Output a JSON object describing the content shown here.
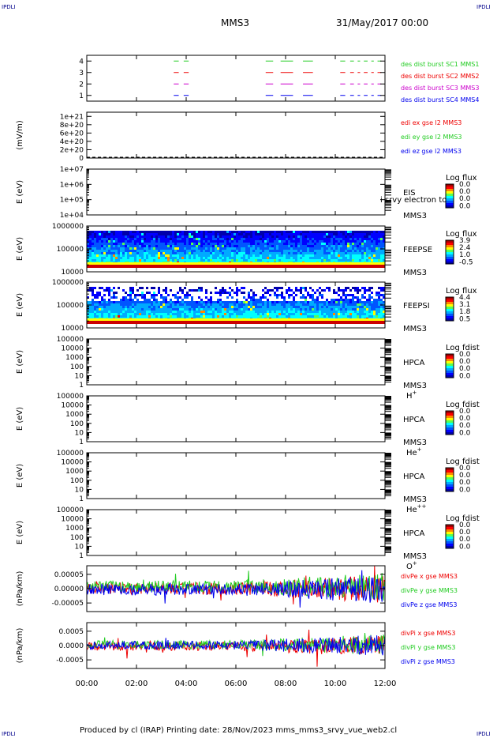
{
  "corner_labels": {
    "tl": "IPDLI",
    "tr": "IPDLI",
    "bl": "IPDLI",
    "br": "IPDLI"
  },
  "header": {
    "spacecraft": "MMS3",
    "date": "31/May/2017 00:00"
  },
  "footer": {
    "text": "Produced by cl (IRAP)   Printing date: 28/Nov/2023   mms_mms3_srvy_vue_web2.cl"
  },
  "chart_data": {
    "type": "line",
    "x_tick_labels": [
      "00:00",
      "02:00",
      "04:00",
      "06:00",
      "08:00",
      "10:00",
      "12:00"
    ],
    "xlim_hours": [
      0,
      12
    ],
    "panels": [
      {
        "id": "burst",
        "type": "timeline",
        "ylim": [
          0.5,
          4.5
        ],
        "y_ticks": [
          {
            "v": 4,
            "t": "4"
          },
          {
            "v": 3,
            "t": "3"
          },
          {
            "v": 2,
            "t": "2"
          },
          {
            "v": 1,
            "t": "1"
          }
        ],
        "series": [
          {
            "name": "des dist burst SC1 MMS1",
            "level": 4,
            "color": "#22cc22"
          },
          {
            "name": "des dist burst SC2 MMS2",
            "level": 3,
            "color": "#ee0000"
          },
          {
            "name": "des dist burst SC3 MMS3",
            "level": 2,
            "color": "#cc00cc"
          },
          {
            "name": "des dist burst SC4 MMS4",
            "level": 1,
            "color": "#0000ee"
          }
        ],
        "intervals_hours": [
          [
            3.5,
            3.7
          ],
          [
            3.9,
            4.1
          ],
          [
            7.2,
            7.5
          ],
          [
            7.8,
            8.3
          ],
          [
            8.7,
            9.1
          ],
          [
            10.2,
            10.4
          ],
          [
            10.6,
            10.75
          ],
          [
            10.9,
            11.0
          ],
          [
            11.15,
            11.3
          ],
          [
            11.45,
            11.55
          ],
          [
            11.7,
            11.85
          ]
        ]
      },
      {
        "id": "edi",
        "type": "line",
        "ylabel": "(mV/m)",
        "ylim": [
          0,
          1.1e+21
        ],
        "y_ticks": [
          {
            "v": 1e+21,
            "t": "1e+21"
          },
          {
            "v": 8e+20,
            "t": "8e+20"
          },
          {
            "v": 6e+20,
            "t": "6e+20"
          },
          {
            "v": 4e+20,
            "t": "4e+20"
          },
          {
            "v": 2e+20,
            "t": "2e+20"
          },
          {
            "v": 0,
            "t": "0"
          }
        ],
        "series": [
          {
            "name": "edi ex gse l2 MMS3",
            "color": "#ee0000"
          },
          {
            "name": "edi ey gse l2 MMS3",
            "color": "#22cc22"
          },
          {
            "name": "edi ez gse l2 MMS3",
            "color": "#0000ee"
          }
        ]
      },
      {
        "id": "eis",
        "type": "spectrogram",
        "ylabel": "E (eV)",
        "log": true,
        "ylim": [
          10000.0,
          10000000.0
        ],
        "y_ticks": [
          {
            "v": 10000000.0,
            "t": "1e+07"
          },
          {
            "v": 1000000.0,
            "t": "1e+06"
          },
          {
            "v": 100000.0,
            "t": "1e+05"
          },
          {
            "v": 10000.0,
            "t": "1e+04"
          }
        ],
        "instrument": [
          "EIS",
          "MMS3"
        ],
        "overlay": "i srvy electron to",
        "colorbar": {
          "title": "Log flux",
          "ticks": [
            "0.0",
            "0.0",
            "0.0",
            "0.0"
          ]
        },
        "filled": false
      },
      {
        "id": "feepse",
        "type": "spectrogram",
        "ylabel": "E (eV)",
        "log": true,
        "ylim": [
          10000.0,
          1000000.0
        ],
        "y_ticks": [
          {
            "v": 1000000.0,
            "t": "1000000"
          },
          {
            "v": 100000.0,
            "t": "100000"
          },
          {
            "v": 10000.0,
            "t": "10000"
          }
        ],
        "instrument": [
          "FEEPSE",
          "MMS3"
        ],
        "colorbar": {
          "title": "Log flux",
          "ticks": [
            "3.9",
            "2.4",
            "1.0",
            "-0.5"
          ]
        },
        "filled": true
      },
      {
        "id": "feepsi",
        "type": "spectrogram",
        "ylabel": "E (eV)",
        "log": true,
        "ylim": [
          10000.0,
          1000000.0
        ],
        "y_ticks": [
          {
            "v": 1000000.0,
            "t": "1000000"
          },
          {
            "v": 100000.0,
            "t": "100000"
          },
          {
            "v": 10000.0,
            "t": "10000"
          }
        ],
        "instrument": [
          "FEEPSI",
          "MMS3"
        ],
        "colorbar": {
          "title": "Log flux",
          "ticks": [
            "4.4",
            "3.1",
            "1.8",
            "0.5"
          ]
        },
        "filled": true
      },
      {
        "id": "hpca_h",
        "type": "spectrogram",
        "ylabel": "E (eV)",
        "log": true,
        "ylim": [
          1,
          100000.0
        ],
        "y_ticks": [
          {
            "v": 100000.0,
            "t": "100000"
          },
          {
            "v": 10000.0,
            "t": "10000"
          },
          {
            "v": 1000.0,
            "t": "1000"
          },
          {
            "v": 100,
            "t": "100"
          },
          {
            "v": 10,
            "t": "10"
          },
          {
            "v": 1,
            "t": "1"
          }
        ],
        "instrument": [
          "HPCA",
          "MMS3"
        ],
        "species": "H",
        "charge": "+",
        "colorbar": {
          "title": "Log fdist",
          "ticks": [
            "0.0",
            "0.0",
            "0.0",
            "0.0"
          ]
        },
        "filled": false
      },
      {
        "id": "hpca_he",
        "type": "spectrogram",
        "ylabel": "E (eV)",
        "log": true,
        "ylim": [
          1,
          100000.0
        ],
        "y_ticks": [
          {
            "v": 100000.0,
            "t": "100000"
          },
          {
            "v": 10000.0,
            "t": "10000"
          },
          {
            "v": 1000.0,
            "t": "1000"
          },
          {
            "v": 100,
            "t": "100"
          },
          {
            "v": 10,
            "t": "10"
          },
          {
            "v": 1,
            "t": "1"
          }
        ],
        "instrument": [
          "HPCA",
          "MMS3"
        ],
        "species": "He",
        "charge": "+",
        "colorbar": {
          "title": "Log fdist",
          "ticks": [
            "0.0",
            "0.0",
            "0.0",
            "0.0"
          ]
        },
        "filled": false
      },
      {
        "id": "hpca_he2",
        "type": "spectrogram",
        "ylabel": "E (eV)",
        "log": true,
        "ylim": [
          1,
          100000.0
        ],
        "y_ticks": [
          {
            "v": 100000.0,
            "t": "100000"
          },
          {
            "v": 10000.0,
            "t": "10000"
          },
          {
            "v": 1000.0,
            "t": "1000"
          },
          {
            "v": 100,
            "t": "100"
          },
          {
            "v": 10,
            "t": "10"
          },
          {
            "v": 1,
            "t": "1"
          }
        ],
        "instrument": [
          "HPCA",
          "MMS3"
        ],
        "species": "He",
        "charge": "++",
        "colorbar": {
          "title": "Log fdist",
          "ticks": [
            "0.0",
            "0.0",
            "0.0",
            "0.0"
          ]
        },
        "filled": false
      },
      {
        "id": "hpca_o",
        "type": "spectrogram",
        "ylabel": "E (eV)",
        "log": true,
        "ylim": [
          1,
          100000.0
        ],
        "y_ticks": [
          {
            "v": 100000.0,
            "t": "100000"
          },
          {
            "v": 10000.0,
            "t": "10000"
          },
          {
            "v": 1000.0,
            "t": "1000"
          },
          {
            "v": 100,
            "t": "100"
          },
          {
            "v": 10,
            "t": "10"
          },
          {
            "v": 1,
            "t": "1"
          }
        ],
        "instrument": [
          "HPCA",
          "MMS3"
        ],
        "species": "O",
        "charge": "+",
        "colorbar": {
          "title": "Log fdist",
          "ticks": [
            "0.0",
            "0.0",
            "0.0",
            "0.0"
          ]
        },
        "filled": false
      },
      {
        "id": "divpe",
        "type": "line",
        "ylabel": "(nPa/km)",
        "ylim": [
          -8e-05,
          8e-05
        ],
        "y_ticks": [
          {
            "v": 5e-05,
            "t": "0.00005"
          },
          {
            "v": 0,
            "t": "0.00000"
          },
          {
            "v": -5e-05,
            "t": "-0.00005"
          }
        ],
        "amplitude": 2e-05,
        "series": [
          {
            "name": "divPe x gse MMS3",
            "color": "#ee0000",
            "offset": 0.0
          },
          {
            "name": "divPe y gse MMS3",
            "color": "#22cc22",
            "offset": 8e-06
          },
          {
            "name": "divPe z gse MMS3",
            "color": "#0000ee",
            "offset": -3e-06
          }
        ]
      },
      {
        "id": "divpi",
        "type": "line",
        "ylabel": "(nPa/km)",
        "ylim": [
          -0.0008,
          0.0008
        ],
        "y_ticks": [
          {
            "v": 0.0005,
            "t": "0.0005"
          },
          {
            "v": 0,
            "t": "0.0000"
          },
          {
            "v": -0.0005,
            "t": "-0.0005"
          }
        ],
        "amplitude": 0.00015,
        "series": [
          {
            "name": "divPi x gse MMS3",
            "color": "#ee0000",
            "offset": -3e-05
          },
          {
            "name": "divPi y gse MMS3",
            "color": "#22cc22",
            "offset": 3e-05
          },
          {
            "name": "divPi z gse MMS3",
            "color": "#0000ee",
            "offset": 1e-05
          }
        ]
      }
    ]
  }
}
